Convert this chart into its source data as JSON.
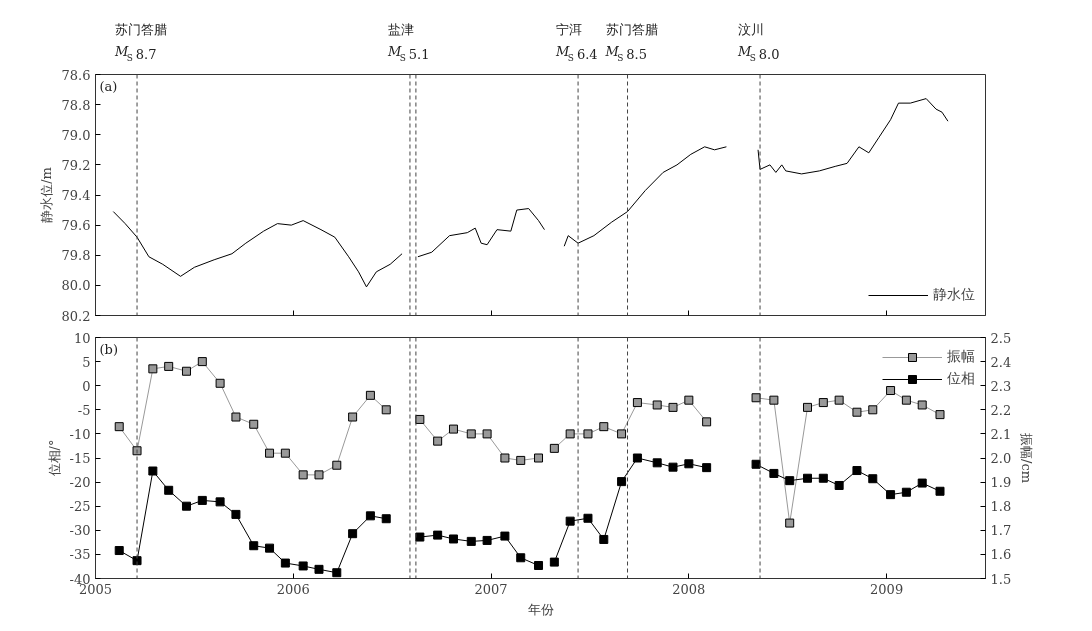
{
  "chart_data": [
    {
      "type": "line",
      "ylabel": "静水位/m",
      "xlim": [
        2005,
        2009.5
      ],
      "xticks": [
        2005,
        2006,
        2007,
        2008,
        2009
      ],
      "ylim": [
        80.2,
        78.6
      ],
      "yticks": [
        78.6,
        78.8,
        {
          "value": 79,
          "label": "79.0"
        },
        79.2,
        79.4,
        79.6,
        79.8,
        {
          "value": 80,
          "label": "80.0"
        },
        80.2
      ],
      "tick_labels": "y",
      "legend": "bottom right",
      "marker": "none",
      "line_style": "solid",
      "annotations": [
        "(a)"
      ],
      "ref_lines": [
        {
          "axis": "x",
          "value": 2005.21,
          "label": "苏门答腊\nM$_{S}$8.7",
          "line_style": "dashed"
        },
        {
          "axis": "x",
          "value": 2006.59,
          "label": "盐津\nM$_{S}$5.1",
          "line_style": "dashed"
        },
        {
          "axis": "x",
          "value": 2006.62,
          "line_style": "dashed"
        },
        {
          "axis": "x",
          "value": 2007.44,
          "label": "宁洱\nM$_{S}$6.4",
          "line_style": "dashed"
        },
        {
          "axis": "x",
          "value": 2007.69,
          "label": "苏门答腊\nM$_{S}$8.5",
          "line_style": "dashed"
        },
        {
          "axis": "x",
          "value": 2008.36,
          "label": "汶川\nM$_{S}$8.0",
          "line_style": "dashed"
        }
      ],
      "series": [
        {
          "name": "静水位",
          "color": "#000000",
          "x": [
            2005.09,
            2005.15,
            2005.21,
            2005.27,
            2005.34,
            2005.43,
            2005.5,
            2005.6,
            2005.69,
            2005.76,
            2005.85,
            2005.92,
            2005.99,
            2006.05,
            2006.14,
            2006.21,
            2006.28,
            2006.33,
            2006.37,
            2006.42,
            2006.49,
            2006.55,
            2006.58,
            2006.63,
            2006.7,
            2006.79,
            2006.88,
            2006.92,
            2006.95,
            2006.98,
            2007.03,
            2007.1,
            2007.13,
            2007.19,
            2007.24,
            2007.27,
            2007.32,
            2007.37,
            2007.39,
            2007.44,
            2007.52,
            2007.61,
            2007.69,
            2007.78,
            2007.87,
            2007.94,
            2008.01,
            2008.08,
            2008.13,
            2008.19,
            2008.27,
            2008.35,
            2008.36,
            2008.41,
            2008.44,
            2008.47,
            2008.49,
            2008.57,
            2008.66,
            2008.74,
            2008.8,
            2008.86,
            2008.91,
            2008.96,
            2009.02,
            2009.06,
            2009.12,
            2009.2,
            2009.25,
            2009.28,
            2009.31
          ],
          "values": [
            79.51,
            79.59,
            79.68,
            79.81,
            79.86,
            79.94,
            79.88,
            79.83,
            79.79,
            79.72,
            79.64,
            79.59,
            79.6,
            79.57,
            79.63,
            79.68,
            79.81,
            79.91,
            80.01,
            79.91,
            79.86,
            79.79,
            null,
            79.81,
            79.78,
            79.67,
            79.65,
            79.62,
            79.72,
            79.73,
            79.63,
            79.64,
            79.5,
            79.49,
            79.57,
            79.63,
            null,
            79.74,
            79.67,
            79.72,
            79.67,
            79.58,
            79.51,
            79.37,
            79.25,
            79.2,
            79.13,
            79.08,
            79.1,
            79.08,
            null,
            79.1,
            79.23,
            79.2,
            79.25,
            79.2,
            79.24,
            79.26,
            79.24,
            79.21,
            79.19,
            79.08,
            79.12,
            79.02,
            78.9,
            78.79,
            78.79,
            78.76,
            78.83,
            78.85,
            78.91
          ]
        }
      ]
    },
    {
      "type": "line",
      "xlabel": "年份",
      "ylabel": "位相/°",
      "y2label": "振幅/cm",
      "xlim": [
        2005,
        2009.5
      ],
      "xticks": [
        2005,
        2006,
        2007,
        2008,
        2009
      ],
      "ylim": [
        -40,
        10
      ],
      "yticks": [
        -40,
        -35,
        -30,
        -25,
        -20,
        -15,
        -10,
        -5,
        0,
        5,
        10
      ],
      "y2lim": [
        1.5,
        2.5
      ],
      "y2ticks": [
        1.5,
        1.6,
        1.7,
        1.8,
        1.9,
        {
          "value": 2,
          "label": "2.0"
        },
        2.1,
        2.2,
        2.3,
        2.4,
        2.5
      ],
      "legend": "top right",
      "marker": "square",
      "line_style": "solid",
      "annotations": [
        "(b)"
      ],
      "ref_lines": [
        {
          "axis": "x",
          "value": 2005.21,
          "line_style": "dashed"
        },
        {
          "axis": "x",
          "value": 2006.59,
          "line_style": "dashed"
        },
        {
          "axis": "x",
          "value": 2006.62,
          "line_style": "dashed"
        },
        {
          "axis": "x",
          "value": 2007.44,
          "line_style": "dashed"
        },
        {
          "axis": "x",
          "value": 2007.69,
          "line_style": "dashed"
        },
        {
          "axis": "x",
          "value": 2008.36,
          "line_style": "dashed"
        }
      ],
      "series": [
        {
          "name": "振幅",
          "color": "#999999",
          "axis": "y2",
          "x": [
            2005.12,
            2005.21,
            2005.29,
            2005.37,
            2005.46,
            2005.54,
            2005.63,
            2005.71,
            2005.8,
            2005.88,
            2005.96,
            2006.05,
            2006.13,
            2006.22,
            2006.3,
            2006.39,
            2006.47,
            2006.55,
            2006.64,
            2006.73,
            2006.81,
            2006.9,
            2006.98,
            2007.07,
            2007.15,
            2007.24,
            2007.28,
            2007.32,
            2007.4,
            2007.49,
            2007.57,
            2007.66,
            2007.74,
            2007.84,
            2007.92,
            2008.0,
            2008.09,
            2008.2,
            2008.34,
            2008.43,
            2008.51,
            2008.6,
            2008.68,
            2008.76,
            2008.85,
            2008.93,
            2009.02,
            2009.1,
            2009.18,
            2009.27
          ],
          "values": [
            2.13,
            2.03,
            2.37,
            2.38,
            2.36,
            2.4,
            2.31,
            2.17,
            2.14,
            2.02,
            2.02,
            1.93,
            1.93,
            1.97,
            2.17,
            2.26,
            2.2,
            null,
            2.16,
            2.07,
            2.12,
            2.1,
            2.1,
            2.0,
            1.99,
            2.0,
            null,
            2.04,
            2.1,
            2.1,
            2.13,
            2.1,
            2.23,
            2.22,
            2.21,
            2.24,
            2.15,
            null,
            2.25,
            2.24,
            1.73,
            2.21,
            2.23,
            2.24,
            2.19,
            2.2,
            2.28,
            2.24,
            2.22,
            2.18
          ]
        },
        {
          "name": "位相",
          "color": "#000000",
          "x": [
            2005.12,
            2005.21,
            2005.29,
            2005.37,
            2005.46,
            2005.54,
            2005.63,
            2005.71,
            2005.8,
            2005.88,
            2005.96,
            2006.05,
            2006.13,
            2006.22,
            2006.3,
            2006.39,
            2006.47,
            2006.55,
            2006.64,
            2006.73,
            2006.81,
            2006.9,
            2006.98,
            2007.07,
            2007.15,
            2007.24,
            2007.28,
            2007.32,
            2007.4,
            2007.49,
            2007.57,
            2007.66,
            2007.74,
            2007.84,
            2007.92,
            2008.0,
            2008.09,
            2008.2,
            2008.34,
            2008.43,
            2008.51,
            2008.6,
            2008.68,
            2008.76,
            2008.85,
            2008.93,
            2009.02,
            2009.1,
            2009.18,
            2009.27
          ],
          "values": [
            -34.2,
            -36.3,
            -17.7,
            -21.7,
            -25.0,
            -23.8,
            -24.1,
            -26.7,
            -33.2,
            -33.7,
            -36.8,
            -37.4,
            -38.1,
            -38.8,
            -30.7,
            -27.0,
            -27.6,
            null,
            -31.4,
            -31.0,
            -31.8,
            -32.3,
            -32.1,
            -31.2,
            -35.7,
            -37.3,
            null,
            -36.6,
            -28.1,
            -27.5,
            -31.9,
            -19.9,
            -15.0,
            -16.0,
            -16.9,
            -16.2,
            -17.0,
            null,
            -16.3,
            -18.2,
            -19.7,
            -19.2,
            -19.2,
            -20.7,
            -17.6,
            -19.3,
            -22.6,
            -22.1,
            -20.2,
            -21.9
          ]
        }
      ]
    }
  ]
}
